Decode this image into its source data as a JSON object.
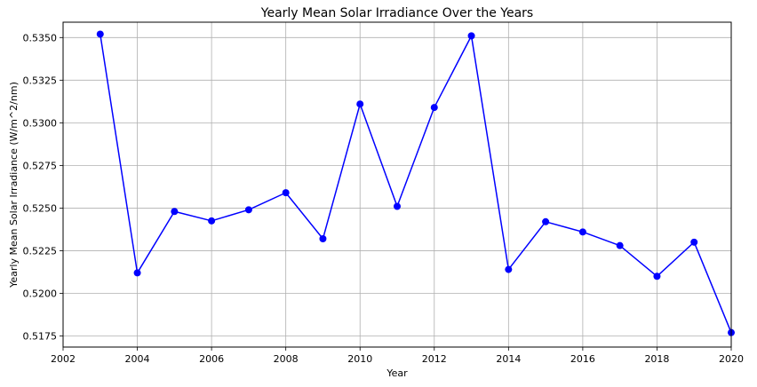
{
  "chart_data": {
    "type": "line",
    "title": "Yearly Mean Solar Irradiance Over the Years",
    "xlabel": "Year",
    "ylabel": "Yearly Mean Solar Irradiance (W/m^2/nm)",
    "xlim": [
      2002,
      2020
    ],
    "ylim": [
      0.51685,
      0.5359
    ],
    "grid": true,
    "xticks": [
      2002,
      2004,
      2006,
      2008,
      2010,
      2012,
      2014,
      2016,
      2018,
      2020
    ],
    "xtick_labels": [
      "2002",
      "2004",
      "2006",
      "2008",
      "2010",
      "2012",
      "2014",
      "2016",
      "2018",
      "2020"
    ],
    "yticks": [
      0.5175,
      0.52,
      0.5225,
      0.525,
      0.5275,
      0.53,
      0.5325,
      0.535
    ],
    "ytick_labels": [
      "0.5175",
      "0.5200",
      "0.5225",
      "0.5250",
      "0.5275",
      "0.5300",
      "0.5325",
      "0.5350"
    ],
    "series": [
      {
        "color": "#0000ff",
        "marker": "circle",
        "x": [
          2003,
          2004,
          2005,
          2006,
          2007,
          2008,
          2009,
          2010,
          2011,
          2012,
          2013,
          2014,
          2015,
          2016,
          2017,
          2018,
          2019,
          2020
        ],
        "y": [
          0.5352,
          0.5212,
          0.5248,
          0.52425,
          0.5249,
          0.5259,
          0.5232,
          0.5311,
          0.5251,
          0.5309,
          0.5351,
          0.5214,
          0.5242,
          0.5236,
          0.5228,
          0.521,
          0.523,
          0.5177
        ]
      }
    ]
  }
}
